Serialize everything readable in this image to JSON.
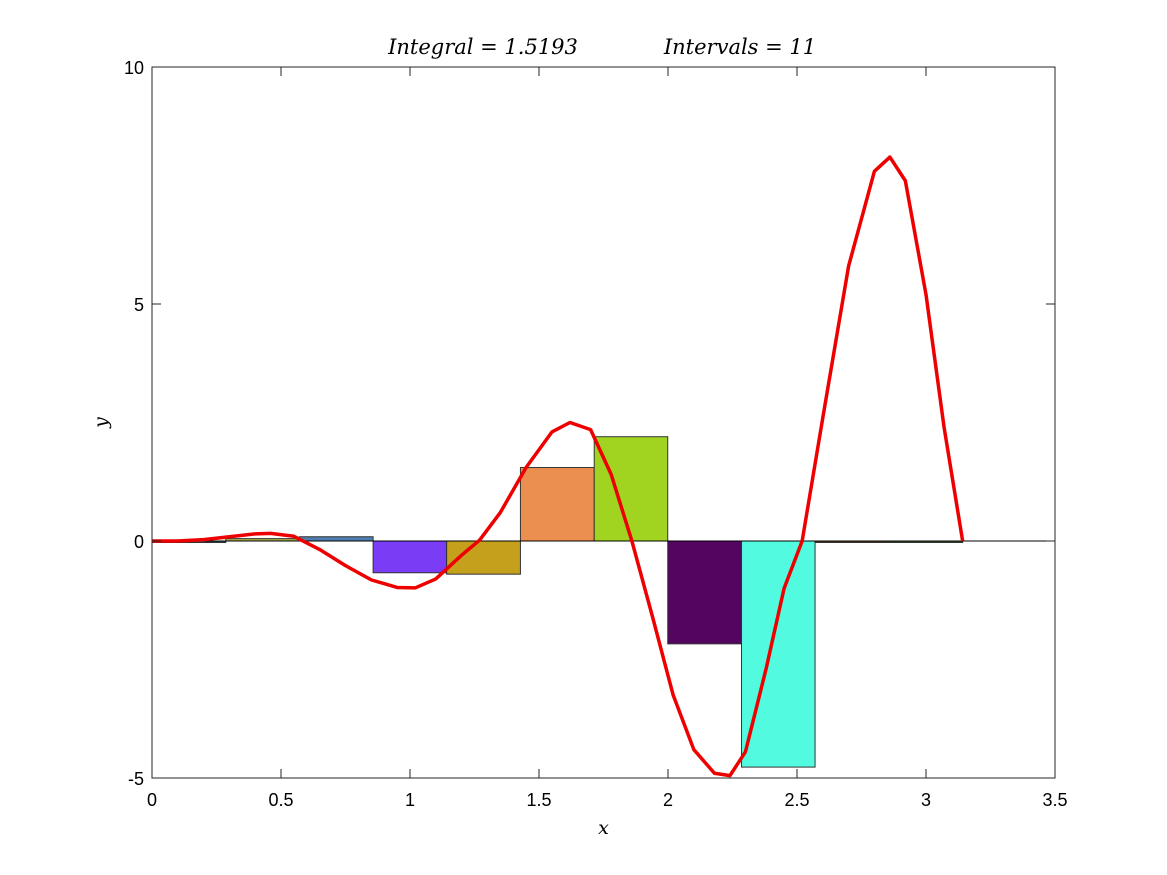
{
  "chart_data": {
    "type": "bar",
    "title_left": "Integral = 1.5193",
    "title_right": "Intervals = 11",
    "xlabel": "x",
    "ylabel": "y",
    "xlim": [
      0,
      3.5
    ],
    "ylim": [
      -5,
      10
    ],
    "xticks": [
      0,
      0.5,
      1,
      1.5,
      2,
      2.5,
      3,
      3.5
    ],
    "xtick_labels": [
      "0",
      "0.5",
      "1",
      "1.5",
      "2",
      "2.5",
      "3",
      "3.5"
    ],
    "yticks": [
      -5,
      0,
      5,
      10
    ],
    "ytick_labels": [
      "-5",
      "0",
      "5",
      "10"
    ],
    "grid": false,
    "rectangles": [
      {
        "x0": 0.0,
        "x1": 0.286,
        "height": -0.005,
        "color": "#2f4f4f"
      },
      {
        "x0": 0.286,
        "x1": 0.571,
        "height": 0.05,
        "color": "#b0b045"
      },
      {
        "x0": 0.571,
        "x1": 0.857,
        "height": 0.09,
        "color": "#4f7fae"
      },
      {
        "x0": 0.857,
        "x1": 1.142,
        "height": -0.67,
        "color": "#7a3cf5"
      },
      {
        "x0": 1.142,
        "x1": 1.428,
        "height": -0.7,
        "color": "#c4a01c"
      },
      {
        "x0": 1.428,
        "x1": 1.714,
        "height": 1.55,
        "color": "#eb8f51"
      },
      {
        "x0": 1.714,
        "x1": 1.999,
        "height": 2.2,
        "color": "#a0d421"
      },
      {
        "x0": 1.999,
        "x1": 2.285,
        "height": -2.17,
        "color": "#540560"
      },
      {
        "x0": 2.285,
        "x1": 2.57,
        "height": -4.77,
        "color": "#52fbdf"
      },
      {
        "x0": 2.57,
        "x1": 2.856,
        "height": 0.0,
        "color": "#5a3a1a"
      },
      {
        "x0": 2.856,
        "x1": 3.142,
        "height": 0.0,
        "color": "#3a5a2a"
      }
    ],
    "curve": {
      "color": "#ee0000",
      "x": [
        0,
        0.1,
        0.2,
        0.3,
        0.4,
        0.46,
        0.55,
        0.65,
        0.75,
        0.85,
        0.95,
        1.02,
        1.1,
        1.2,
        1.27,
        1.35,
        1.45,
        1.55,
        1.62,
        1.7,
        1.78,
        1.86,
        1.94,
        2.02,
        2.1,
        2.18,
        2.24,
        2.3,
        2.38,
        2.45,
        2.52,
        2.6,
        2.7,
        2.8,
        2.86,
        2.92,
        3.0,
        3.07,
        3.142
      ],
      "y": [
        0,
        0.0,
        0.03,
        0.09,
        0.15,
        0.16,
        0.1,
        -0.18,
        -0.52,
        -0.82,
        -0.98,
        -0.99,
        -0.8,
        -0.3,
        0.02,
        0.6,
        1.55,
        2.3,
        2.5,
        2.35,
        1.4,
        0.0,
        -1.6,
        -3.25,
        -4.4,
        -4.9,
        -4.95,
        -4.45,
        -2.7,
        -1.0,
        0.0,
        2.6,
        5.8,
        7.8,
        8.1,
        7.6,
        5.2,
        2.4,
        0.0
      ]
    }
  }
}
